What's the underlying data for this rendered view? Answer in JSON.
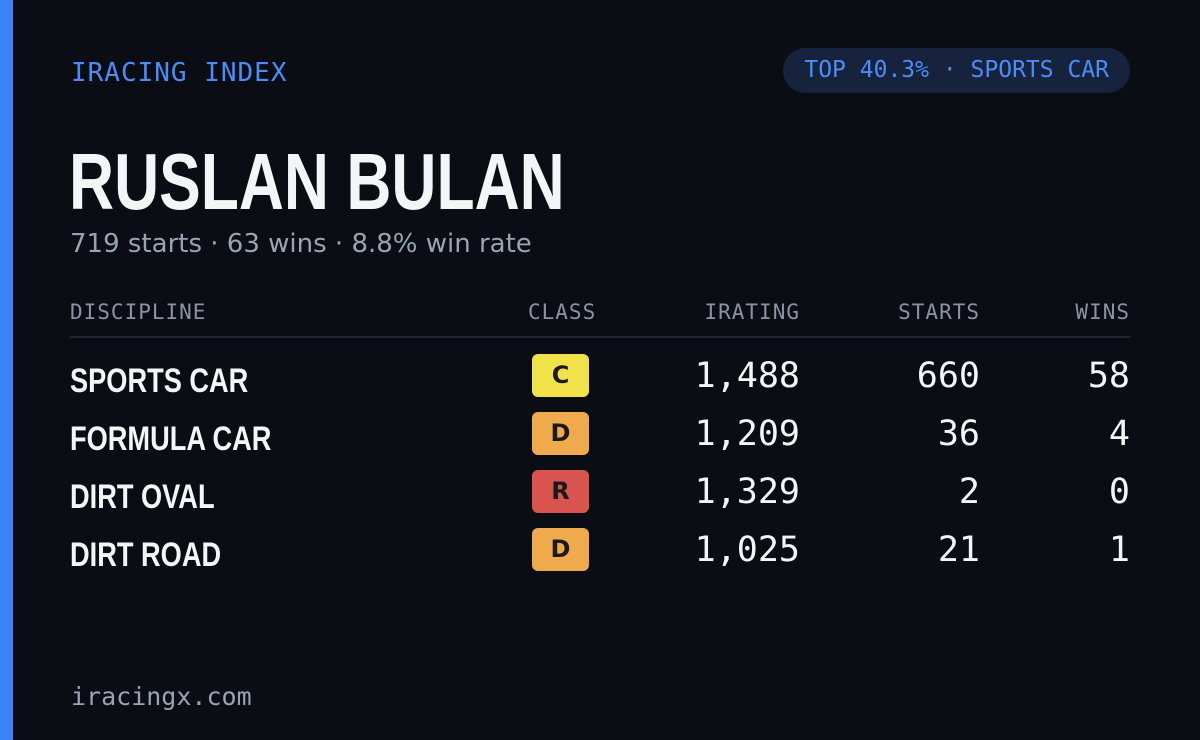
{
  "brand": "IRACING INDEX",
  "rank_pill": "TOP 40.3% · SPORTS CAR",
  "driver": {
    "name": "RUSLAN BULAN",
    "summary": "719 starts · 63 wins · 8.8% win rate"
  },
  "table": {
    "headers": {
      "discipline": "DISCIPLINE",
      "class": "CLASS",
      "irating": "IRATING",
      "starts": "STARTS",
      "wins": "WINS"
    },
    "rows": [
      {
        "discipline": "SPORTS CAR",
        "class": "C",
        "class_color": "#f2e24a",
        "irating": "1,488",
        "starts": "660",
        "wins": "58"
      },
      {
        "discipline": "FORMULA CAR",
        "class": "D",
        "class_color": "#eeaa4c",
        "irating": "1,209",
        "starts": "36",
        "wins": "4"
      },
      {
        "discipline": "DIRT OVAL",
        "class": "R",
        "class_color": "#d9534f",
        "irating": "1,329",
        "starts": "2",
        "wins": "0"
      },
      {
        "discipline": "DIRT ROAD",
        "class": "D",
        "class_color": "#eeaa4c",
        "irating": "1,025",
        "starts": "21",
        "wins": "1"
      }
    ]
  },
  "footer": "iracingx.com",
  "colors": {
    "background": "#0a0d14",
    "accent": "#3b82f6",
    "accent_text": "#4b8df8"
  }
}
